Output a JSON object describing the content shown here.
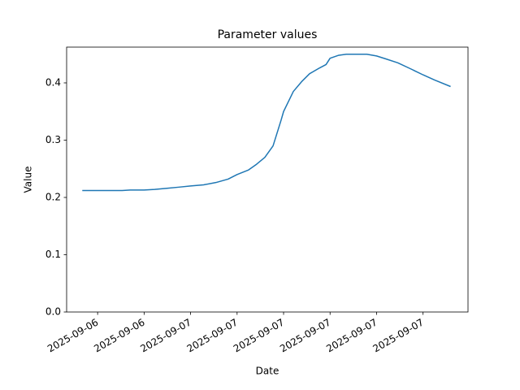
{
  "chart_data": {
    "type": "line",
    "title": "Parameter values",
    "x_label": "Date",
    "y_label": "Value",
    "x": [
      17.05,
      18,
      19.05,
      19.58,
      20.1,
      21,
      21.68,
      22.47,
      23.26,
      24,
      24.84,
      25.63,
      26.42,
      27,
      27.74,
      28.26,
      28.79,
      29.32,
      29.84,
      30,
      30.63,
      31.16,
      31.68,
      32.32,
      32.74,
      33,
      33.53,
      34.05,
      34.84,
      35.37,
      36,
      36.58,
      37.37,
      38.16,
      39,
      39.74,
      40.74
    ],
    "series": [
      {
        "color": "#1f77b4",
        "values": [
          0.212,
          0.212,
          0.212,
          0.212,
          0.213,
          0.213,
          0.214,
          0.216,
          0.218,
          0.22,
          0.222,
          0.226,
          0.232,
          0.24,
          0.248,
          0.258,
          0.27,
          0.29,
          0.335,
          0.35,
          0.385,
          0.402,
          0.416,
          0.426,
          0.432,
          0.443,
          0.448,
          0.45,
          0.45,
          0.45,
          0.447,
          0.442,
          0.435,
          0.425,
          0.414,
          0.405,
          0.394
        ]
      }
    ],
    "xlim": [
      16,
      41.9
    ],
    "ylim": [
      0,
      0.4624
    ],
    "xticks": [
      {
        "value": 18,
        "label": "2025-09-06"
      },
      {
        "value": 21,
        "label": "2025-09-06"
      },
      {
        "value": 24,
        "label": "2025-09-07"
      },
      {
        "value": 27,
        "label": "2025-09-07"
      },
      {
        "value": 30,
        "label": "2025-09-07"
      },
      {
        "value": 33,
        "label": "2025-09-07"
      },
      {
        "value": 36,
        "label": "2025-09-07"
      },
      {
        "value": 39,
        "label": "2025-09-07"
      }
    ],
    "yticks": [
      {
        "value": 0,
        "label": "0.0"
      },
      0.1,
      0.2,
      0.3,
      0.4
    ]
  }
}
